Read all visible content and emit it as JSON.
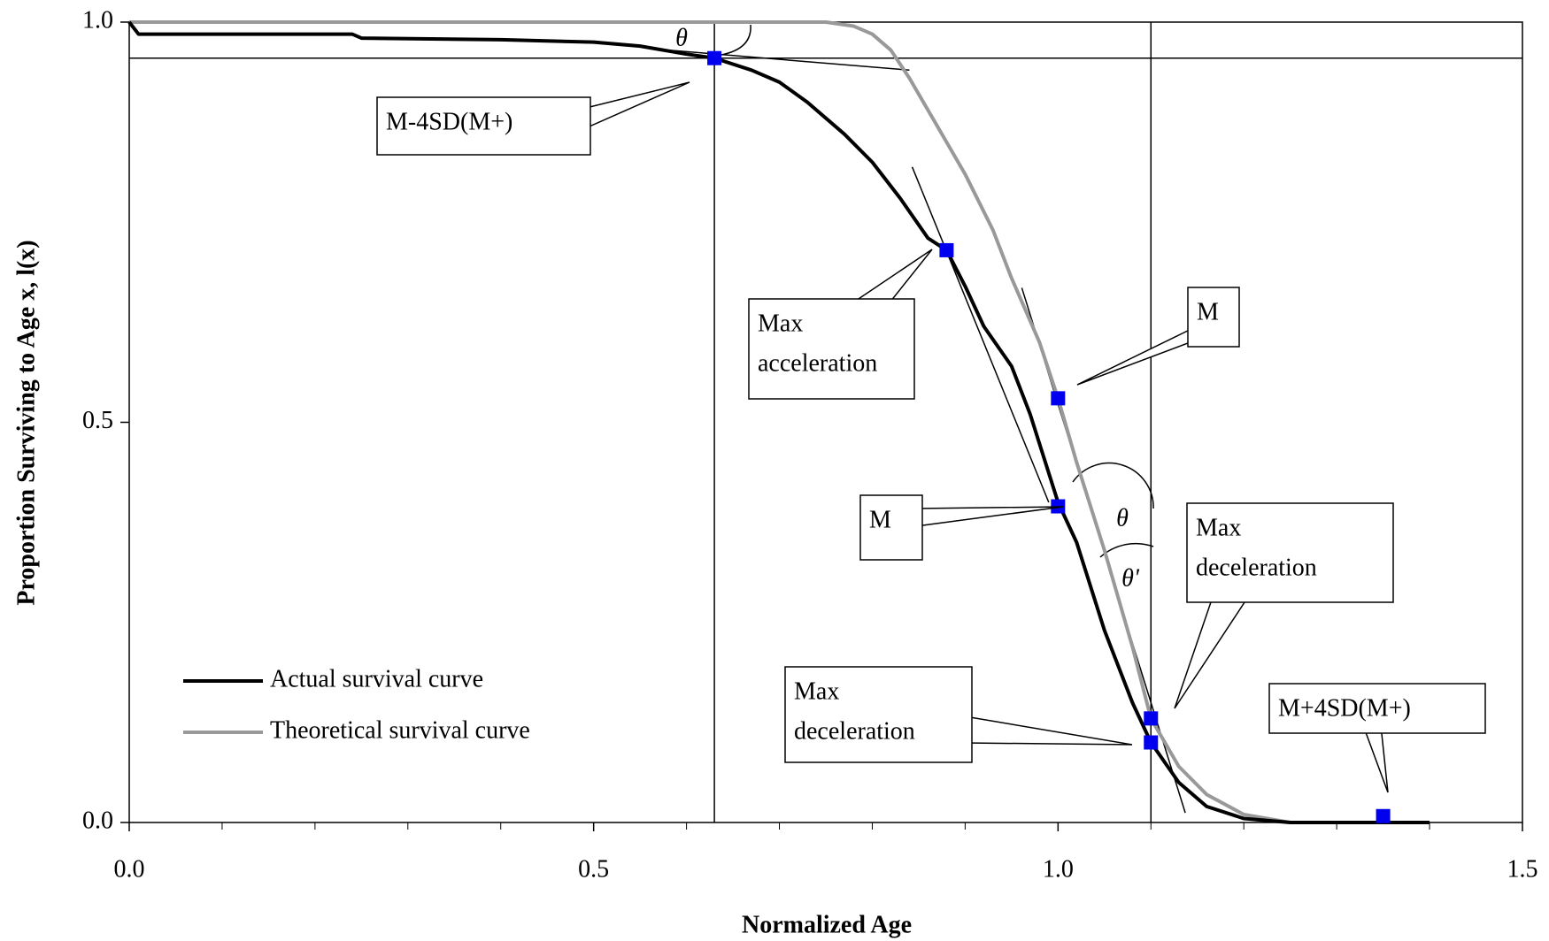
{
  "chart_data": {
    "type": "line",
    "xlabel": "Normalized Age",
    "ylabel": "Proportion Surviving to Age x, l(x)",
    "xlim": [
      0,
      1.5
    ],
    "ylim": [
      0,
      1.0
    ],
    "xticks": [
      {
        "value": 0,
        "label": "0.0"
      },
      {
        "value": 0.5,
        "label": "0.5"
      },
      {
        "value": 1.0,
        "label": "1.0"
      },
      {
        "value": 1.5,
        "label": "1.5"
      }
    ],
    "xminorticks": [
      0.1,
      0.2,
      0.3,
      0.4,
      0.6,
      0.7,
      0.8,
      0.9,
      1.1,
      1.2,
      1.3,
      1.4
    ],
    "yticks": [
      {
        "value": 0,
        "label": "0.0"
      },
      {
        "value": 0.5,
        "label": "0.5"
      },
      {
        "value": 1.0,
        "label": "1.0"
      }
    ],
    "legend": "lower left",
    "series": [
      {
        "name": "Actual survival curve",
        "color": "#000000",
        "x": [
          0,
          0.01,
          0.1,
          0.24,
          0.25,
          0.4,
          0.5,
          0.55,
          0.6,
          0.63,
          0.67,
          0.7,
          0.73,
          0.77,
          0.8,
          0.83,
          0.86,
          0.88,
          0.9,
          0.92,
          0.95,
          0.97,
          1.0,
          1.02,
          1.05,
          1.08,
          1.1,
          1.13,
          1.16,
          1.2,
          1.25,
          1.4
        ],
        "values": [
          1.0,
          0.985,
          0.985,
          0.985,
          0.98,
          0.978,
          0.975,
          0.97,
          0.96,
          0.955,
          0.94,
          0.925,
          0.9,
          0.86,
          0.825,
          0.78,
          0.73,
          0.715,
          0.67,
          0.62,
          0.57,
          0.51,
          0.4,
          0.35,
          0.24,
          0.15,
          0.1,
          0.05,
          0.02,
          0.005,
          0,
          0
        ]
      },
      {
        "name": "Theoretical survival curve",
        "color": "#999999",
        "x": [
          0,
          0.3,
          0.5,
          0.75,
          0.78,
          0.8,
          0.82,
          0.84,
          0.87,
          0.9,
          0.93,
          0.95,
          0.98,
          1.0,
          1.02,
          1.05,
          1.08,
          1.1,
          1.13,
          1.16,
          1.2,
          1.25,
          1.4
        ],
        "values": [
          1.0,
          1.0,
          1.0,
          1.0,
          0.995,
          0.985,
          0.965,
          0.93,
          0.87,
          0.81,
          0.74,
          0.68,
          0.6,
          0.53,
          0.45,
          0.34,
          0.22,
          0.13,
          0.07,
          0.035,
          0.01,
          0,
          0
        ]
      }
    ],
    "markers": {
      "color": "#0000ee",
      "x": [
        0.63,
        0.88,
        1.0,
        1.0,
        1.1,
        1.1,
        1.35
      ],
      "values": [
        0.955,
        0.715,
        0.53,
        0.395,
        0.13,
        0.1,
        0.008
      ]
    },
    "vlines": [
      0.63,
      1.1
    ],
    "hlines": [
      0.955
    ],
    "tangents": [
      [
        0.58,
        0.965,
        0.84,
        0.94
      ],
      [
        0.843,
        0.819,
        0.99,
        0.4
      ],
      [
        0.961,
        0.668,
        1.137,
        0.012
      ]
    ],
    "annotations": [
      {
        "lines": [
          "M-4SD(M+)"
        ]
      },
      {
        "lines": [
          "Max",
          "acceleration"
        ]
      },
      {
        "lines": [
          "M"
        ]
      },
      {
        "lines": [
          "M"
        ]
      },
      {
        "lines": [
          "Max",
          "deceleration"
        ]
      },
      {
        "lines": [
          "Max",
          "deceleration"
        ]
      },
      {
        "lines": [
          "M+4SD(M+)"
        ]
      }
    ],
    "angle_labels": [
      "θ",
      "θ",
      "θ'"
    ]
  }
}
